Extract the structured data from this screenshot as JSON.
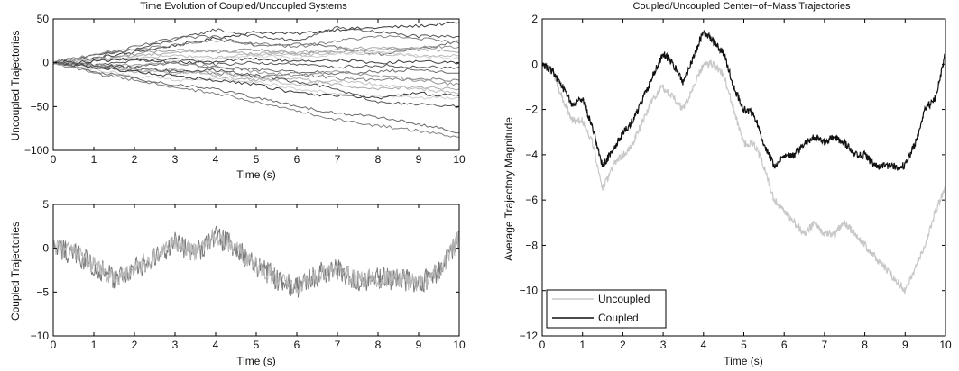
{
  "chart_data": [
    {
      "type": "line",
      "title": "Time Evolution of Coupled/Uncoupled Systems",
      "xlabel": "Time (s)",
      "ylabel": "Uncoupled Trajectories",
      "xlim": [
        0,
        10
      ],
      "ylim": [
        -100,
        50
      ],
      "xticks": [
        "0",
        "1",
        "2",
        "3",
        "4",
        "5",
        "6",
        "7",
        "8",
        "9",
        "10"
      ],
      "yticks": [
        "50",
        "0",
        "-50",
        "-100"
      ],
      "grid": false,
      "colors": [
        "#3a3a3a",
        "#555555",
        "#6a6a6a",
        "#808080",
        "#959595",
        "#aaaaaa",
        "#bdbdbd",
        "#cfcfcf"
      ],
      "x": [
        0,
        1,
        2,
        3,
        4,
        5,
        6,
        7,
        8,
        9,
        10
      ],
      "series": [
        {
          "values": [
            0,
            5,
            12,
            20,
            28,
            35,
            33,
            38,
            40,
            42,
            46
          ]
        },
        {
          "values": [
            0,
            8,
            15,
            26,
            38,
            30,
            25,
            40,
            35,
            30,
            30
          ]
        },
        {
          "values": [
            0,
            5,
            18,
            28,
            30,
            20,
            22,
            18,
            10,
            15,
            25
          ]
        },
        {
          "values": [
            0,
            10,
            15,
            20,
            25,
            22,
            18,
            25,
            30,
            28,
            22
          ]
        },
        {
          "values": [
            0,
            3,
            10,
            15,
            12,
            15,
            10,
            12,
            15,
            18,
            18
          ]
        },
        {
          "values": [
            0,
            4,
            8,
            12,
            14,
            10,
            12,
            15,
            18,
            16,
            12
          ]
        },
        {
          "values": [
            0,
            2,
            5,
            8,
            6,
            10,
            8,
            12,
            10,
            8,
            8
          ]
        },
        {
          "values": [
            0,
            3,
            6,
            2,
            5,
            8,
            5,
            10,
            12,
            8,
            5
          ]
        },
        {
          "values": [
            0,
            2,
            4,
            0,
            2,
            4,
            2,
            3,
            0,
            2,
            0
          ]
        },
        {
          "values": [
            0,
            -2,
            2,
            5,
            -2,
            0,
            -2,
            -5,
            -3,
            -5,
            -5
          ]
        },
        {
          "values": [
            0,
            -3,
            -5,
            0,
            -5,
            -8,
            -10,
            -12,
            -10,
            -8,
            -12
          ]
        },
        {
          "values": [
            0,
            -5,
            -8,
            -10,
            -12,
            -15,
            -12,
            -18,
            -20,
            -18,
            -20
          ]
        },
        {
          "values": [
            0,
            -3,
            -2,
            0,
            -5,
            -10,
            -15,
            -10,
            -15,
            -20,
            -25
          ]
        },
        {
          "values": [
            0,
            -5,
            -10,
            -8,
            -15,
            -20,
            -18,
            -25,
            -30,
            -28,
            -30
          ]
        },
        {
          "values": [
            0,
            -4,
            -8,
            -12,
            -10,
            -18,
            -25,
            -20,
            -25,
            -30,
            -35
          ]
        },
        {
          "values": [
            0,
            -8,
            -15,
            -20,
            -18,
            -22,
            -30,
            -35,
            -38,
            -40,
            -40
          ]
        },
        {
          "values": [
            0,
            -5,
            -10,
            -15,
            -20,
            -25,
            -35,
            -38,
            -40,
            -35,
            -38
          ]
        },
        {
          "values": [
            0,
            -3,
            -5,
            -10,
            -8,
            -15,
            -22,
            -30,
            -45,
            -48,
            -50
          ]
        },
        {
          "values": [
            0,
            -10,
            -18,
            -25,
            -30,
            -40,
            -50,
            -58,
            -62,
            -70,
            -80
          ]
        },
        {
          "values": [
            0,
            -12,
            -20,
            -28,
            -35,
            -45,
            -55,
            -65,
            -72,
            -78,
            -85
          ]
        }
      ]
    },
    {
      "type": "line",
      "title": "",
      "xlabel": "Time (s)",
      "ylabel": "Coupled Trajectories",
      "xlim": [
        0,
        10
      ],
      "ylim": [
        -10,
        5
      ],
      "xticks": [
        "0",
        "1",
        "2",
        "3",
        "4",
        "5",
        "6",
        "7",
        "8",
        "9",
        "10"
      ],
      "yticks": [
        "5",
        "0",
        "-5",
        "-10"
      ],
      "grid": false,
      "colors": [
        "#7a7a7a",
        "#b8b8b8"
      ],
      "x": [
        0,
        0.5,
        1,
        1.5,
        2,
        2.5,
        3,
        3.5,
        4,
        4.5,
        5,
        5.5,
        6,
        6.5,
        7,
        7.5,
        8,
        8.5,
        9,
        9.5,
        10
      ],
      "series": [
        {
          "values": [
            0,
            -0.5,
            -2,
            -3.5,
            -2.5,
            -1,
            0.5,
            -0.5,
            1.5,
            0,
            -2,
            -3.5,
            -4.5,
            -3,
            -2.5,
            -3.5,
            -3.5,
            -3.5,
            -4,
            -2.5,
            1
          ]
        }
      ]
    },
    {
      "type": "line",
      "title": "Coupled/Uncoupled Center−of−Mass Trajectories",
      "xlabel": "Time (s)",
      "ylabel": "Average Trajectory Magnitude",
      "xlim": [
        0,
        10
      ],
      "ylim": [
        -12,
        2
      ],
      "xticks": [
        "0",
        "1",
        "2",
        "3",
        "4",
        "5",
        "6",
        "7",
        "8",
        "9",
        "10"
      ],
      "yticks": [
        "2",
        "0",
        "-2",
        "-4",
        "-6",
        "-8",
        "-10",
        "-12"
      ],
      "grid": false,
      "legend_position": "bottom-left",
      "x": [
        0,
        0.25,
        0.5,
        0.75,
        1,
        1.25,
        1.5,
        1.75,
        2,
        2.25,
        2.5,
        2.75,
        3,
        3.25,
        3.5,
        3.75,
        4,
        4.25,
        4.5,
        4.75,
        5,
        5.25,
        5.5,
        5.75,
        6,
        6.25,
        6.5,
        6.75,
        7,
        7.25,
        7.5,
        7.75,
        8,
        8.25,
        8.5,
        8.75,
        9,
        9.25,
        9.5,
        9.75,
        10
      ],
      "series": [
        {
          "name": "Uncoupled",
          "color": "#c8c8c8",
          "values": [
            0,
            -0.3,
            -1.5,
            -2.5,
            -2.5,
            -3.5,
            -5.5,
            -4.5,
            -4,
            -3.5,
            -2.5,
            -1.5,
            -1,
            -1.5,
            -2,
            -1,
            0,
            0,
            -0.5,
            -2,
            -3.5,
            -3.5,
            -4.5,
            -6,
            -6.5,
            -7,
            -7.5,
            -7,
            -7.5,
            -7.5,
            -7,
            -7.5,
            -8,
            -8.5,
            -9,
            -9.5,
            -10,
            -9,
            -8,
            -6.5,
            -5.5
          ]
        },
        {
          "name": "Coupled",
          "color": "#111111",
          "values": [
            0,
            -0.3,
            -1,
            -1.8,
            -1.5,
            -2.8,
            -4.5,
            -3.8,
            -3,
            -2.5,
            -1.5,
            -0.5,
            0.5,
            0,
            -0.8,
            0.3,
            1.5,
            1,
            0.5,
            -1,
            -2,
            -2.2,
            -3.5,
            -4.5,
            -4,
            -4,
            -3.5,
            -3.2,
            -3.5,
            -3.2,
            -3.5,
            -4,
            -4,
            -4.5,
            -4.5,
            -4.5,
            -4.5,
            -3.5,
            -2,
            -1.5,
            0.5
          ]
        }
      ]
    }
  ]
}
